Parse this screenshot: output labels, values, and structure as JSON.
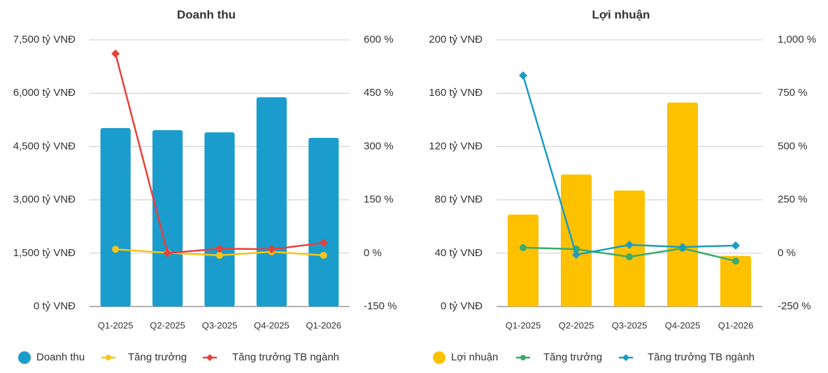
{
  "chart_data": [
    {
      "type": "combo",
      "title": "Doanh thu",
      "categories": [
        "Q1-2025",
        "Q2-2025",
        "Q3-2025",
        "Q4-2025",
        "Q1-2026"
      ],
      "series": [
        {
          "name": "Doanh thu",
          "type": "bar",
          "color": "#1a9ccc",
          "values": [
            5020,
            4960,
            4900,
            5886,
            4744
          ]
        },
        {
          "name": "Tăng trưởng",
          "type": "line",
          "axis": "y2",
          "marker": "circle",
          "color": "#f5c518",
          "values": [
            11,
            1,
            -6,
            4,
            -6
          ]
        },
        {
          "name": "Tăng trưởng TB ngành",
          "type": "line",
          "axis": "y2",
          "marker": "diamond",
          "color": "#e8413a",
          "values": [
            561,
            0,
            13,
            11,
            29
          ]
        }
      ],
      "ylim": [
        0,
        7500
      ],
      "yticks": [
        {
          "value": 0,
          "label": "0 tỷ VNĐ"
        },
        {
          "value": 1500,
          "label": "1,500 tỷ VNĐ"
        },
        {
          "value": 3000,
          "label": "3,000 tỷ VNĐ"
        },
        {
          "value": 4500,
          "label": "4,500 tỷ VNĐ"
        },
        {
          "value": 6000,
          "label": "6,000 tỷ VNĐ"
        },
        {
          "value": 7500,
          "label": "7,500 tỷ VNĐ"
        }
      ],
      "y2lim": [
        -150,
        600
      ],
      "y2ticks": [
        {
          "value": -150,
          "label": "-150 %"
        },
        {
          "value": 0,
          "label": "0 %"
        },
        {
          "value": 150,
          "label": "150 %"
        },
        {
          "value": 300,
          "label": "300 %"
        },
        {
          "value": 450,
          "label": "450 %"
        },
        {
          "value": 600,
          "label": "600 %"
        }
      ],
      "grid": true,
      "legend": "bottom"
    },
    {
      "type": "combo",
      "title": "Lợi nhuận",
      "categories": [
        "Q1-2025",
        "Q2-2025",
        "Q3-2025",
        "Q4-2025",
        "Q1-2026"
      ],
      "series": [
        {
          "name": "Lợi nhuận",
          "type": "bar",
          "color": "#fdc100",
          "values": [
            69,
            99,
            87,
            153,
            38
          ]
        },
        {
          "name": "Tăng trưởng",
          "type": "line",
          "axis": "y2",
          "marker": "circle",
          "color": "#3aab6c",
          "values": [
            26,
            19,
            -17,
            23,
            -37
          ]
        },
        {
          "name": "Tăng trưởng TB ngành",
          "type": "line",
          "axis": "y2",
          "marker": "diamond",
          "color": "#1a9cc4",
          "values": [
            833,
            -7,
            39,
            29,
            36
          ]
        }
      ],
      "ylim": [
        0,
        200
      ],
      "yticks": [
        {
          "value": 0,
          "label": "0 tỷ VNĐ"
        },
        {
          "value": 40,
          "label": "40 tỷ VNĐ"
        },
        {
          "value": 80,
          "label": "80 tỷ VNĐ"
        },
        {
          "value": 120,
          "label": "120 tỷ VNĐ"
        },
        {
          "value": 160,
          "label": "160 tỷ VNĐ"
        },
        {
          "value": 200,
          "label": "200 tỷ VNĐ"
        }
      ],
      "y2lim": [
        -250,
        1000
      ],
      "y2ticks": [
        {
          "value": -250,
          "label": "-250 %"
        },
        {
          "value": 0,
          "label": "0 %"
        },
        {
          "value": 250,
          "label": "250 %"
        },
        {
          "value": 500,
          "label": "500 %"
        },
        {
          "value": 750,
          "label": "750 %"
        },
        {
          "value": 1000,
          "label": "1,000 %"
        }
      ],
      "grid": true,
      "legend": "bottom"
    }
  ]
}
